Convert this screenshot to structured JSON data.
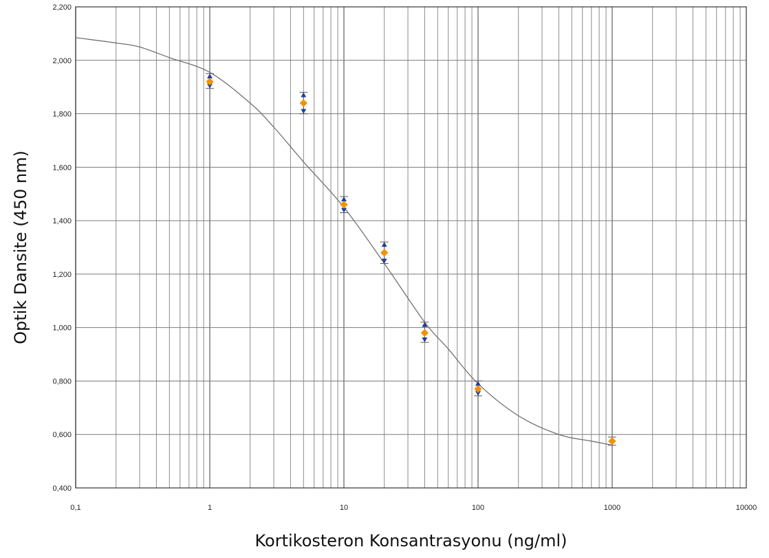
{
  "chart_data": {
    "type": "scatter",
    "title": "",
    "xlabel": "Kortikosteron Konsantrasyonu (ng/ml)",
    "ylabel": "Optik Dansite (450 nm)",
    "xscale": "log",
    "xlim": [
      0.1,
      10000
    ],
    "ylim": [
      0.4,
      2.2
    ],
    "grid": true,
    "x_tick_values": [
      0.1,
      1,
      10,
      100,
      1000,
      10000
    ],
    "x_tick_labels": [
      "0,1",
      "1",
      "10",
      "100",
      "1000",
      "10000"
    ],
    "y_tick_values": [
      0.4,
      0.6,
      0.8,
      1.0,
      1.2,
      1.4,
      1.6,
      1.8,
      2.0,
      2.2
    ],
    "y_tick_labels": [
      "0,400",
      "0,600",
      "0,800",
      "1,000",
      "1,200",
      "1,400",
      "1,600",
      "1,800",
      "2,000",
      "2,200"
    ],
    "series": [
      {
        "marker": "mean",
        "color": "#f39200",
        "x": [
          1,
          5,
          10,
          20,
          40,
          100,
          1000
        ],
        "y": [
          1.92,
          1.84,
          1.46,
          1.28,
          0.98,
          0.77,
          0.575
        ]
      },
      {
        "marker": "replicate-high",
        "color": "#1f3f9a",
        "x": [
          1,
          5,
          10,
          20,
          40,
          100,
          1000
        ],
        "y": [
          1.94,
          1.87,
          1.48,
          1.31,
          1.01,
          0.79,
          0.58
        ]
      },
      {
        "marker": "replicate-low",
        "color": "#1f3f9a",
        "x": [
          1,
          5,
          10,
          20,
          40,
          100,
          1000
        ],
        "y": [
          1.905,
          1.81,
          1.44,
          1.25,
          0.955,
          0.755,
          0.57
        ]
      },
      {
        "marker": "fit-curve",
        "color": "#707070",
        "x": [
          0.1,
          0.2,
          0.3,
          0.5,
          1,
          2,
          3,
          5,
          10,
          20,
          40,
          60,
          100,
          200,
          400,
          700,
          1000
        ],
        "y": [
          2.085,
          2.065,
          2.05,
          2.01,
          1.955,
          1.84,
          1.75,
          1.62,
          1.45,
          1.24,
          1.02,
          0.92,
          0.79,
          0.67,
          0.6,
          0.575,
          0.56
        ]
      }
    ]
  }
}
